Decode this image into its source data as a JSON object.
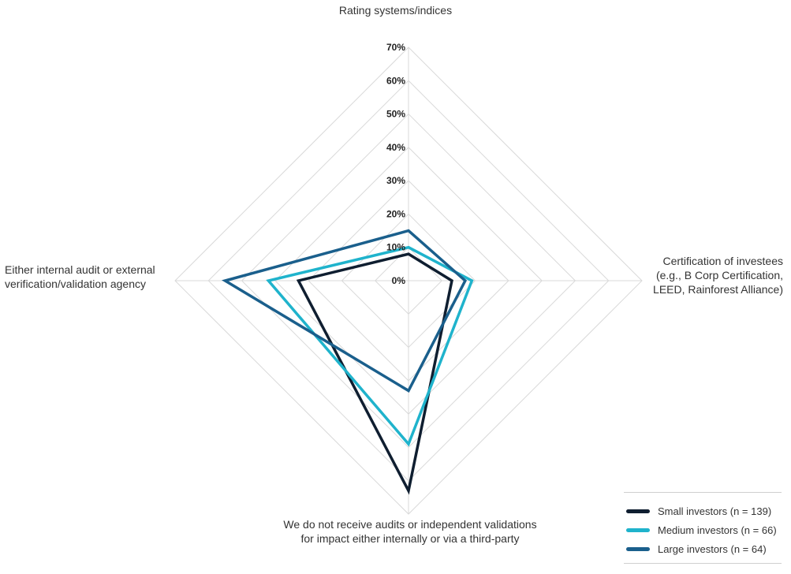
{
  "chart_data": {
    "type": "radar",
    "axes": [
      "Rating systems/indices",
      "Certification of investees (e.g., B Corp Certification, LEED, Rainforest Alliance)",
      "We do not receive audits or independent validations for impact either internally or via a third-party",
      "Either internal audit or external verification/validation agency"
    ],
    "axis_labels": {
      "top": "Rating systems/indices",
      "right": [
        "Certification of investees",
        "(e.g., B Corp Certification,",
        "LEED, Rainforest Alliance)"
      ],
      "bottom": [
        "We do not receive audits or independent validations",
        "for impact either internally or via a third-party"
      ],
      "left": [
        "Either internal audit or external",
        "verification/validation agency"
      ]
    },
    "ticks": [
      "0%",
      "10%",
      "20%",
      "30%",
      "40%",
      "50%",
      "60%",
      "70%"
    ],
    "range": [
      0,
      70
    ],
    "grid": true,
    "legend_position": "bottom-right",
    "series": [
      {
        "name": "Small investors (n = 139)",
        "color": "#0f1e30",
        "values": [
          8,
          13,
          63,
          33
        ]
      },
      {
        "name": "Medium investors (n = 66)",
        "color": "#1fb3cc",
        "values": [
          10,
          19,
          49,
          42
        ]
      },
      {
        "name": "Large investors (n = 64)",
        "color": "#1a5f8c",
        "values": [
          15,
          17,
          33,
          55
        ]
      }
    ]
  }
}
